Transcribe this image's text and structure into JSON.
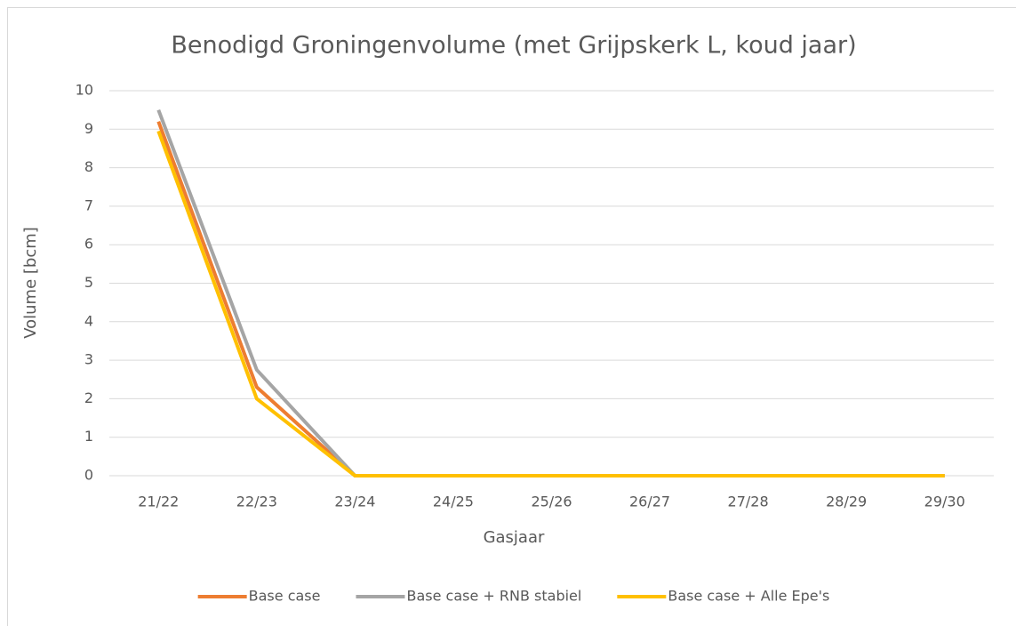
{
  "chart_data": {
    "type": "line",
    "title": "Benodigd Groningenvolume (met Grijpskerk L, koud jaar)",
    "x_label": "Gasjaar",
    "y_label": "Volume [bcm]",
    "categories": [
      "21/22",
      "22/23",
      "23/24",
      "24/25",
      "25/26",
      "26/27",
      "27/28",
      "28/29",
      "29/30"
    ],
    "series": [
      {
        "name": "Base case",
        "color": "#ed7d31",
        "values": [
          9.2,
          2.3,
          0,
          0,
          0,
          0,
          0,
          0,
          0
        ]
      },
      {
        "name": "Base case + RNB stabiel",
        "color": "#a5a5a5",
        "values": [
          9.5,
          2.75,
          0,
          0,
          0,
          0,
          0,
          0,
          0
        ]
      },
      {
        "name": "Base case + Alle Epe's",
        "color": "#ffc000",
        "values": [
          8.95,
          2.0,
          0,
          0,
          0,
          0,
          0,
          0,
          0
        ]
      }
    ],
    "ylim": [
      0,
      10
    ],
    "yticks": [
      0,
      1,
      2,
      3,
      4,
      5,
      6,
      7,
      8,
      9,
      10
    ],
    "grid": true,
    "legend": "bottom"
  }
}
